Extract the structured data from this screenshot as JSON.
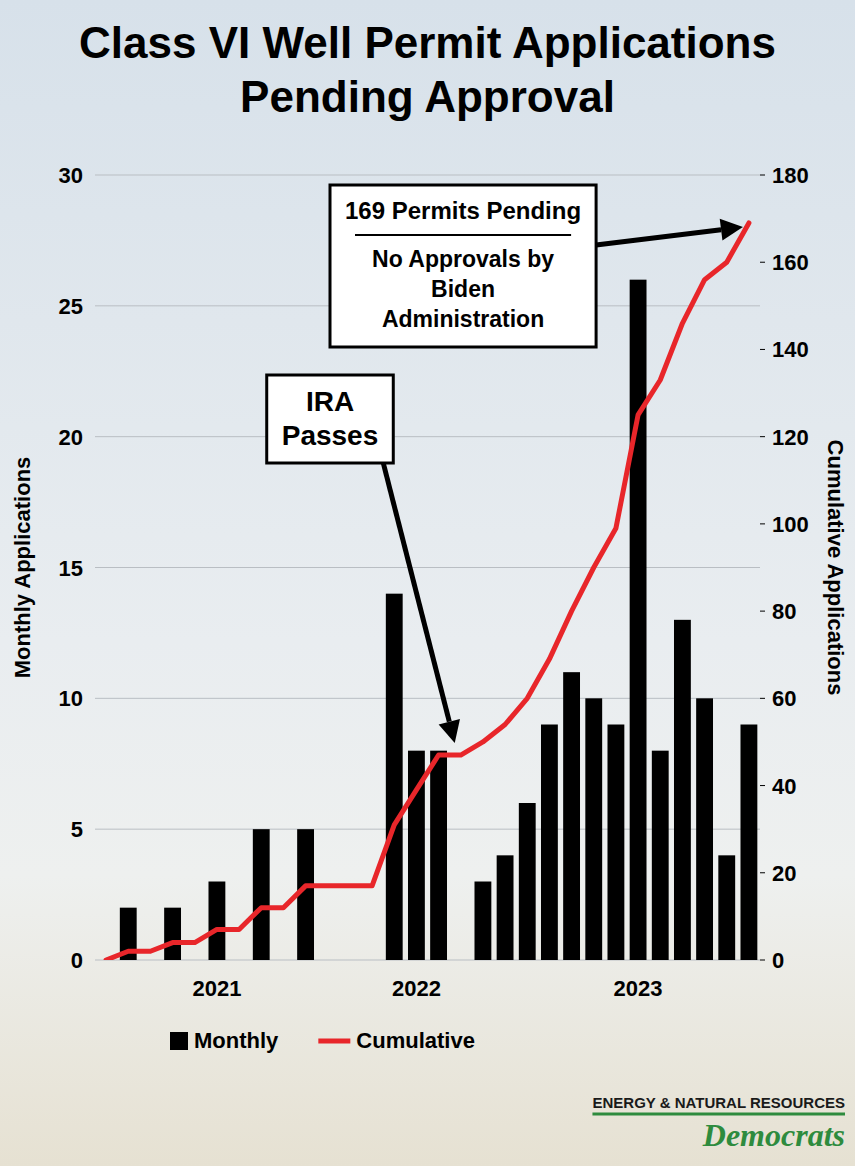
{
  "chart_data": {
    "type": "bar",
    "title": "Class VI Well Permit Applications Pending Approval",
    "categories": [
      null,
      null,
      null,
      null,
      null,
      "2021",
      null,
      null,
      null,
      null,
      null,
      null,
      null,
      null,
      "2022",
      null,
      null,
      null,
      null,
      null,
      null,
      null,
      null,
      null,
      "2023",
      null,
      null,
      null,
      null,
      null
    ],
    "series": [
      {
        "name": "Monthly",
        "type": "bar",
        "color": "#000000",
        "values": [
          0,
          2,
          0,
          2,
          0,
          3,
          0,
          5,
          0,
          5,
          0,
          0,
          0,
          14,
          8,
          8,
          0,
          3,
          4,
          6,
          9,
          11,
          10,
          9,
          26,
          8,
          13,
          10,
          4,
          9
        ]
      },
      {
        "name": "Cumulative",
        "type": "line",
        "color": "#e8262a",
        "axis": "y2",
        "values": [
          0,
          2,
          2,
          4,
          4,
          7,
          7,
          12,
          12,
          17,
          17,
          17,
          17,
          31,
          39,
          47,
          47,
          50,
          54,
          60,
          69,
          80,
          90,
          99,
          125,
          133,
          146,
          156,
          160,
          169
        ]
      }
    ],
    "y_label": "Monthly Applications",
    "y2_label": "Cumulative Applications",
    "ylim": [
      0,
      30
    ],
    "yticks": [
      0,
      5,
      10,
      15,
      20,
      25,
      30
    ],
    "y2lim": [
      0,
      180
    ],
    "y2ticks": [
      0,
      20,
      40,
      60,
      80,
      100,
      120,
      140,
      160,
      180
    ],
    "grid": true,
    "legend": "bottom",
    "annotations": [
      {
        "text": "IRA Passes"
      },
      {
        "title": "169 Permits Pending",
        "text": "No Approvals by Biden Administration"
      }
    ],
    "logo": {
      "org": "ENERGY & NATURAL RESOURCES",
      "party": "Democrats"
    }
  }
}
